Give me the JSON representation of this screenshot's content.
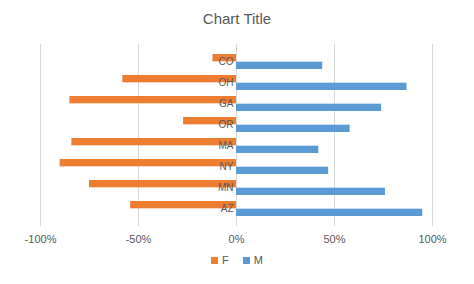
{
  "chart_data": {
    "type": "bar",
    "title": "Chart Title",
    "orientation": "horizontal",
    "categories": [
      "CO",
      "OH",
      "GA",
      "OR",
      "MA",
      "NY",
      "MN",
      "AZ"
    ],
    "series": [
      {
        "name": "F",
        "color": "#ed7d31",
        "values": [
          -12,
          -58,
          -85,
          -27,
          -84,
          -90,
          -75,
          -54
        ]
      },
      {
        "name": "M",
        "color": "#5b9bd5",
        "values": [
          44,
          87,
          74,
          58,
          42,
          47,
          76,
          95
        ]
      }
    ],
    "xlim": [
      -100,
      100
    ],
    "xticks": [
      {
        "value": -100,
        "label": "-100%"
      },
      {
        "value": -50,
        "label": "-50%"
      },
      {
        "value": 0,
        "label": "0%"
      },
      {
        "value": 50,
        "label": "50%"
      },
      {
        "value": 100,
        "label": "100%"
      }
    ],
    "grid": true,
    "legend": "bottom"
  }
}
